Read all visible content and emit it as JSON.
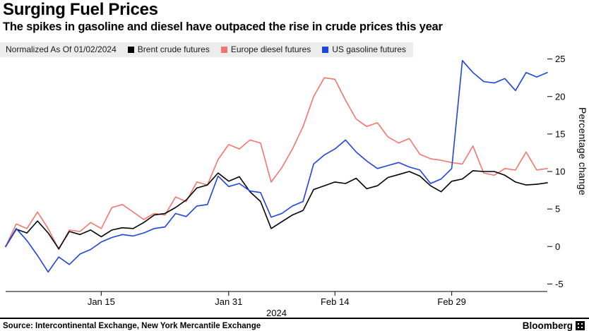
{
  "header": {
    "title": "Surging Fuel Prices",
    "subtitle": "The spikes in gasoline and diesel have outpaced the rise in crude prices this year"
  },
  "legend": {
    "note": "Normalized As Of 01/02/2024"
  },
  "chart_data": {
    "type": "line",
    "title": "Surging Fuel Prices",
    "xlabel": "2024",
    "ylabel": "Percentage change",
    "ylim": [
      -6,
      26
    ],
    "yticks": [
      25,
      20,
      15,
      10,
      5,
      0,
      -5
    ],
    "grid": false,
    "legend_position": "top",
    "x_axis_year": "2024",
    "xticks": [
      {
        "label": "Jan 15",
        "index": 9
      },
      {
        "label": "Jan 31",
        "index": 21
      },
      {
        "label": "Feb 14",
        "index": 31
      },
      {
        "label": "Feb 29",
        "index": 42
      }
    ],
    "x_dates": [
      "01/02",
      "01/03",
      "01/04",
      "01/05",
      "01/08",
      "01/09",
      "01/10",
      "01/11",
      "01/12",
      "01/15",
      "01/16",
      "01/17",
      "01/18",
      "01/19",
      "01/22",
      "01/23",
      "01/24",
      "01/25",
      "01/26",
      "01/29",
      "01/30",
      "01/31",
      "02/01",
      "02/02",
      "02/05",
      "02/06",
      "02/07",
      "02/08",
      "02/09",
      "02/12",
      "02/13",
      "02/14",
      "02/15",
      "02/16",
      "02/19",
      "02/20",
      "02/21",
      "02/22",
      "02/23",
      "02/26",
      "02/27",
      "02/28",
      "02/29",
      "03/01",
      "03/04",
      "03/05",
      "03/06",
      "03/07",
      "03/08",
      "03/11",
      "03/12",
      "03/13"
    ],
    "series": [
      {
        "name": "Brent crude futures",
        "color": "#000000",
        "values": [
          0,
          2.3,
          1.8,
          3.4,
          1.8,
          -0.3,
          2.0,
          1.6,
          2.2,
          1.3,
          2.2,
          2.5,
          2.4,
          3.2,
          4.2,
          4.4,
          5.2,
          6.2,
          7.8,
          8.2,
          9.8,
          8.7,
          9.3,
          7.3,
          6.0,
          2.4,
          3.3,
          4.2,
          4.8,
          7.6,
          8.1,
          8.6,
          8.4,
          9.1,
          7.7,
          8.1,
          9.2,
          9.6,
          10.0,
          9.4,
          8.1,
          7.3,
          8.7,
          9.0,
          10.1,
          10.0,
          10.0,
          9.5,
          8.6,
          8.2,
          8.3,
          8.5
        ]
      },
      {
        "name": "Europe diesel futures",
        "color": "#f4756c",
        "values": [
          0,
          3.0,
          2.4,
          4.6,
          2.4,
          -0.4,
          2.2,
          2.0,
          3.2,
          2.4,
          5.2,
          5.6,
          4.6,
          3.6,
          4.4,
          4.2,
          6.6,
          6.0,
          8.6,
          8.2,
          11.6,
          13.6,
          13.0,
          14.2,
          13.8,
          8.6,
          10.5,
          13.0,
          16.0,
          20.0,
          22.5,
          22.3,
          19.5,
          17.0,
          16.0,
          16.5,
          14.6,
          13.8,
          14.4,
          12.3,
          11.7,
          11.5,
          11.2,
          11.0,
          13.4,
          9.8,
          9.5,
          10.4,
          10.2,
          12.6,
          10.2,
          10.4
        ]
      },
      {
        "name": "US gasoline futures",
        "color": "#1d44e0",
        "values": [
          0,
          2.4,
          0.8,
          -1.2,
          -3.4,
          -1.4,
          -2.4,
          -1.0,
          -0.4,
          0.6,
          1.2,
          1.6,
          1.4,
          1.8,
          2.4,
          2.6,
          4.4,
          4.0,
          5.4,
          5.6,
          9.4,
          8.0,
          8.4,
          7.4,
          7.2,
          3.9,
          4.4,
          5.4,
          6.0,
          11.0,
          12.2,
          13.0,
          14.2,
          12.6,
          11.4,
          10.4,
          10.8,
          11.2,
          10.6,
          10.2,
          8.4,
          9.0,
          10.4,
          24.8,
          23.2,
          22.0,
          21.8,
          22.4,
          20.8,
          23.2,
          22.6,
          23.2
        ]
      }
    ]
  },
  "footer": {
    "source": "Source: Intercontinental Exchange, New York Mercantile Exchange",
    "brand": "Bloomberg"
  }
}
